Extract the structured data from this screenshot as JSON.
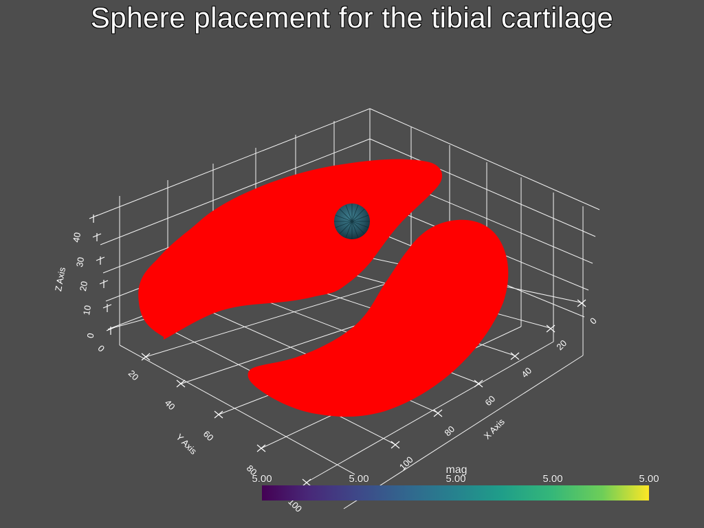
{
  "title": "Sphere placement for the tibial cartilage",
  "axes": {
    "x": {
      "label": "X Axis",
      "ticks": [
        "0",
        "20",
        "40",
        "60",
        "80",
        "100"
      ]
    },
    "y": {
      "label": "Y Axis",
      "ticks": [
        "0",
        "20",
        "40",
        "60",
        "80",
        "100"
      ]
    },
    "z": {
      "label": "Z Axis",
      "ticks": [
        "0",
        "10",
        "20",
        "30",
        "40"
      ]
    }
  },
  "scalar_bar": {
    "title": "mag",
    "labels": [
      "5.00",
      "5.00",
      "5.00",
      "5.00",
      "5.00"
    ],
    "colormap": "viridis"
  },
  "colors": {
    "background": "#4d4d4d",
    "cartilage": "#ff0000",
    "grid": "#ffffff",
    "sphere": "#2b5c6e"
  }
}
